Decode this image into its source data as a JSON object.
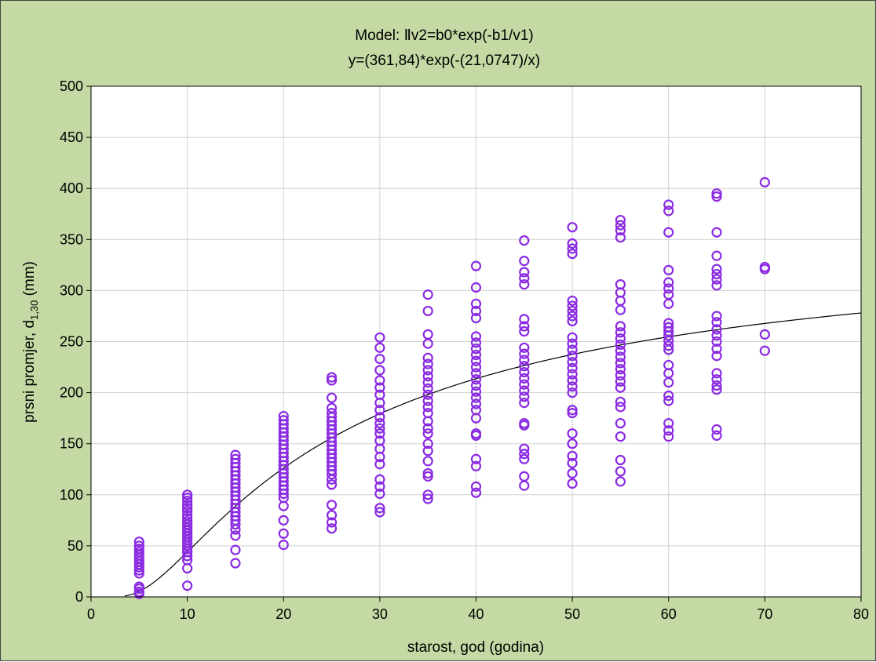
{
  "chart_data": {
    "type": "scatter",
    "title": "Model: Ⅱv2=b0*exp(-b1/v1)",
    "subtitle": "y=(361,84)*exp(-(21,0747)/x)",
    "xlabel": "starost, god (godina)",
    "ylabel": {
      "main": "prsni promjer, d",
      "subscript": "1,30",
      "unit": "(mm)"
    },
    "xlim": [
      0,
      80
    ],
    "ylim": [
      0,
      500
    ],
    "xticks": [
      0,
      10,
      20,
      30,
      40,
      50,
      60,
      70,
      80
    ],
    "yticks": [
      0,
      50,
      100,
      150,
      200,
      250,
      300,
      350,
      400,
      450,
      500
    ],
    "grid": true,
    "legend": "none",
    "marker_color": "#8a2be2",
    "line_color": "#000000",
    "model": {
      "b0": 361.84,
      "b1": 21.0747
    },
    "series": [
      {
        "x": 5,
        "y": [
          54,
          50,
          47,
          44,
          41,
          38,
          35,
          32,
          29,
          26,
          23,
          10,
          8,
          5,
          3
        ]
      },
      {
        "x": 10,
        "y": [
          100,
          97,
          94,
          90,
          87,
          84,
          80,
          77,
          74,
          71,
          68,
          65,
          62,
          59,
          56,
          53,
          50,
          47,
          44,
          40,
          36,
          28,
          11
        ]
      },
      {
        "x": 15,
        "y": [
          139,
          135,
          131,
          127,
          123,
          119,
          115,
          111,
          107,
          103,
          99,
          95,
          91,
          87,
          83,
          79,
          75,
          71,
          66,
          60,
          46,
          33
        ]
      },
      {
        "x": 20,
        "y": [
          177,
          173,
          169,
          165,
          161,
          157,
          153,
          149,
          145,
          141,
          137,
          133,
          129,
          125,
          121,
          117,
          113,
          109,
          105,
          101,
          97,
          89,
          75,
          62,
          51
        ]
      },
      {
        "x": 25,
        "y": [
          215,
          212,
          195,
          185,
          180,
          176,
          172,
          168,
          164,
          160,
          156,
          152,
          148,
          144,
          140,
          136,
          132,
          128,
          124,
          120,
          115,
          110,
          90,
          80,
          73,
          67
        ]
      },
      {
        "x": 30,
        "y": [
          254,
          244,
          233,
          222,
          212,
          205,
          198,
          190,
          183,
          176,
          170,
          165,
          160,
          153,
          145,
          137,
          130,
          115,
          108,
          101,
          87,
          83
        ]
      },
      {
        "x": 35,
        "y": [
          296,
          280,
          257,
          248,
          234,
          228,
          222,
          216,
          210,
          204,
          198,
          192,
          186,
          180,
          172,
          165,
          160,
          150,
          143,
          133,
          121,
          118,
          100,
          96
        ]
      },
      {
        "x": 40,
        "y": [
          324,
          303,
          287,
          280,
          273,
          255,
          249,
          243,
          237,
          231,
          225,
          219,
          213,
          207,
          201,
          195,
          189,
          183,
          175,
          160,
          158,
          135,
          128,
          108,
          102
        ]
      },
      {
        "x": 45,
        "y": [
          349,
          329,
          318,
          312,
          306,
          272,
          265,
          260,
          244,
          238,
          232,
          226,
          220,
          214,
          208,
          202,
          196,
          190,
          170,
          168,
          145,
          140,
          135,
          118,
          109
        ]
      },
      {
        "x": 50,
        "y": [
          362,
          346,
          341,
          336,
          290,
          285,
          280,
          275,
          270,
          254,
          248,
          242,
          236,
          230,
          224,
          218,
          212,
          206,
          200,
          183,
          180,
          160,
          150,
          138,
          131,
          121,
          111
        ]
      },
      {
        "x": 55,
        "y": [
          369,
          364,
          359,
          352,
          306,
          298,
          290,
          281,
          265,
          259,
          253,
          247,
          241,
          235,
          229,
          223,
          217,
          211,
          205,
          191,
          186,
          170,
          157,
          134,
          123,
          113
        ]
      },
      {
        "x": 60,
        "y": [
          384,
          378,
          357,
          320,
          308,
          302,
          296,
          287,
          268,
          264,
          260,
          256,
          251,
          246,
          242,
          227,
          219,
          210,
          197,
          192,
          170,
          163,
          157
        ]
      },
      {
        "x": 65,
        "y": [
          395,
          392,
          357,
          334,
          321,
          316,
          311,
          305,
          275,
          269,
          262,
          256,
          250,
          243,
          236,
          219,
          213,
          207,
          203,
          164,
          158
        ]
      },
      {
        "x": 70,
        "y": [
          406,
          323,
          321,
          257,
          241
        ]
      }
    ]
  }
}
